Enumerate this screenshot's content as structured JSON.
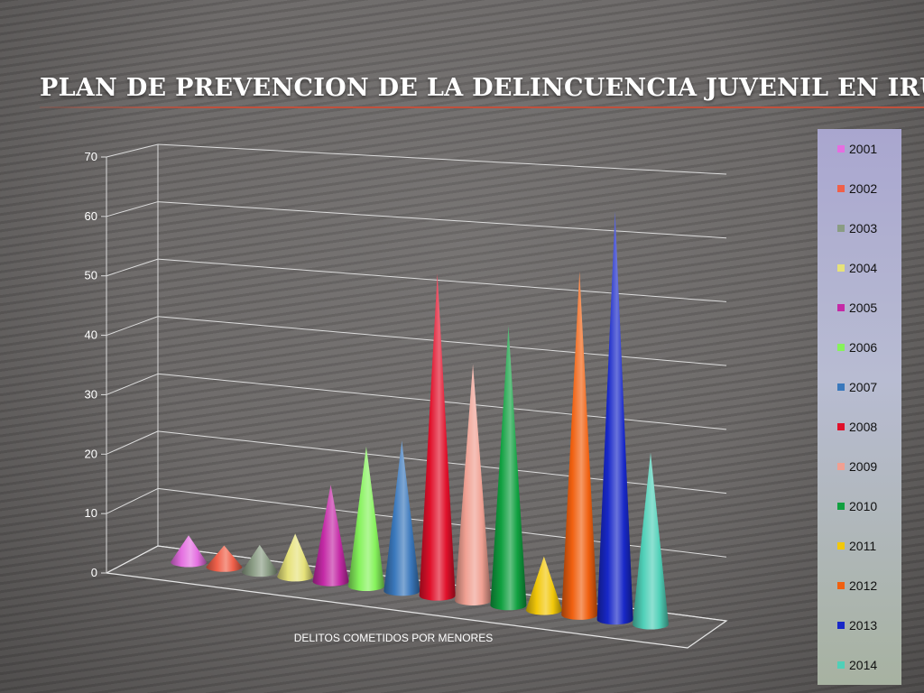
{
  "title": "PLAN DE PREVENCION DE LA DELINCUENCIA JUVENIL EN IRUN",
  "chart_data": {
    "type": "bar",
    "shape": "cone",
    "title": "",
    "xlabel": "DELITOS COMETIDOS POR MENORES",
    "ylabel": "",
    "ylim": [
      0,
      70
    ],
    "yticks": [
      0,
      10,
      20,
      30,
      40,
      50,
      60,
      70
    ],
    "grid": true,
    "legend_position": "right",
    "series": [
      {
        "name": "2001",
        "value": 5,
        "color": "#e46fe0"
      },
      {
        "name": "2002",
        "value": 4,
        "color": "#f0604a"
      },
      {
        "name": "2003",
        "value": 5,
        "color": "#8a9c84"
      },
      {
        "name": "2004",
        "value": 8,
        "color": "#e6e27a"
      },
      {
        "name": "2005",
        "value": 18,
        "color": "#c42aa6"
      },
      {
        "name": "2006",
        "value": 26,
        "color": "#86f25c"
      },
      {
        "name": "2007",
        "value": 28,
        "color": "#3a78bc"
      },
      {
        "name": "2008",
        "value": 60,
        "color": "#e0102a"
      },
      {
        "name": "2009",
        "value": 44,
        "color": "#f0a092"
      },
      {
        "name": "2010",
        "value": 52,
        "color": "#10a040"
      },
      {
        "name": "2011",
        "value": 10,
        "color": "#f2c80a"
      },
      {
        "name": "2012",
        "value": 64,
        "color": "#f06010"
      },
      {
        "name": "2013",
        "value": 76,
        "color": "#1828c8"
      },
      {
        "name": "2014",
        "value": 32,
        "color": "#50d0b8"
      }
    ]
  }
}
